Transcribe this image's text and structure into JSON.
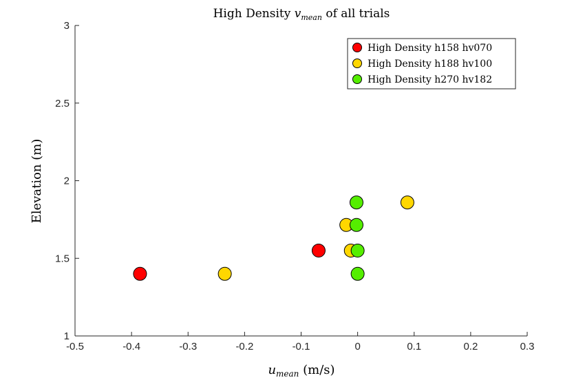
{
  "chart_data": {
    "type": "scatter",
    "title": {
      "prefix": "High Density ",
      "var_main": "v",
      "var_sub": "mean",
      "suffix": " of all trials"
    },
    "xlabel": {
      "var_main": "u",
      "var_sub": "mean",
      "suffix": " (m/s)"
    },
    "ylabel": "Elevation (m)",
    "xlim": [
      -0.5,
      0.3
    ],
    "ylim": [
      1,
      3
    ],
    "xticks": [
      -0.5,
      -0.4,
      -0.3,
      -0.2,
      -0.1,
      0,
      0.1,
      0.2,
      0.3
    ],
    "xtick_labels": [
      "-0.5",
      "-0.4",
      "-0.3",
      "-0.2",
      "-0.1",
      "0",
      "0.1",
      "0.2",
      "0.3"
    ],
    "yticks": [
      1,
      1.5,
      2,
      2.5,
      3
    ],
    "ytick_labels": [
      "1",
      "1.5",
      "2",
      "2.5",
      "3"
    ],
    "grid": false,
    "legend_position": "top-right",
    "series": [
      {
        "name": "High Density h158 hv070",
        "color": "#ff0000",
        "points": [
          {
            "x": -0.385,
            "y": 1.4
          },
          {
            "x": -0.069,
            "y": 1.55
          }
        ]
      },
      {
        "name": "High Density h188 hv100",
        "color": "#ffd700",
        "points": [
          {
            "x": -0.235,
            "y": 1.4
          },
          {
            "x": -0.012,
            "y": 1.55
          },
          {
            "x": -0.02,
            "y": 1.715
          },
          {
            "x": 0.088,
            "y": 1.86
          }
        ]
      },
      {
        "name": "High Density h270 hv182",
        "color": "#55ee00",
        "points": [
          {
            "x": 0.0,
            "y": 1.4
          },
          {
            "x": 0.0,
            "y": 1.55
          },
          {
            "x": -0.002,
            "y": 1.715
          },
          {
            "x": -0.002,
            "y": 1.86
          }
        ]
      }
    ]
  }
}
